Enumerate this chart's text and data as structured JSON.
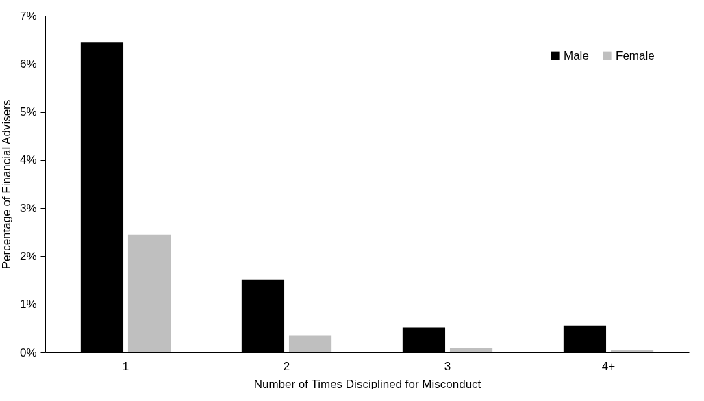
{
  "chart_data": {
    "type": "bar",
    "xlabel": "Number of Times Disciplined for Misconduct",
    "ylabel": "Percentage of Financial Advisers",
    "categories": [
      "1",
      "2",
      "3",
      "4+"
    ],
    "series": [
      {
        "name": "Male",
        "color": "#000000",
        "values": [
          6.44,
          1.51,
          0.52,
          0.56
        ]
      },
      {
        "name": "Female",
        "color": "#bfbfbf",
        "values": [
          2.45,
          0.35,
          0.1,
          0.05
        ]
      }
    ],
    "ylim": [
      0,
      7
    ],
    "yticks": [
      {
        "value": 0,
        "label": "0%"
      },
      {
        "value": 1,
        "label": "1%"
      },
      {
        "value": 2,
        "label": "2%"
      },
      {
        "value": 3,
        "label": "3%"
      },
      {
        "value": 4,
        "label": "4%"
      },
      {
        "value": 5,
        "label": "5%"
      },
      {
        "value": 6,
        "label": "6%"
      },
      {
        "value": 7,
        "label": "7%"
      }
    ],
    "grid": false,
    "legend": "top right"
  }
}
